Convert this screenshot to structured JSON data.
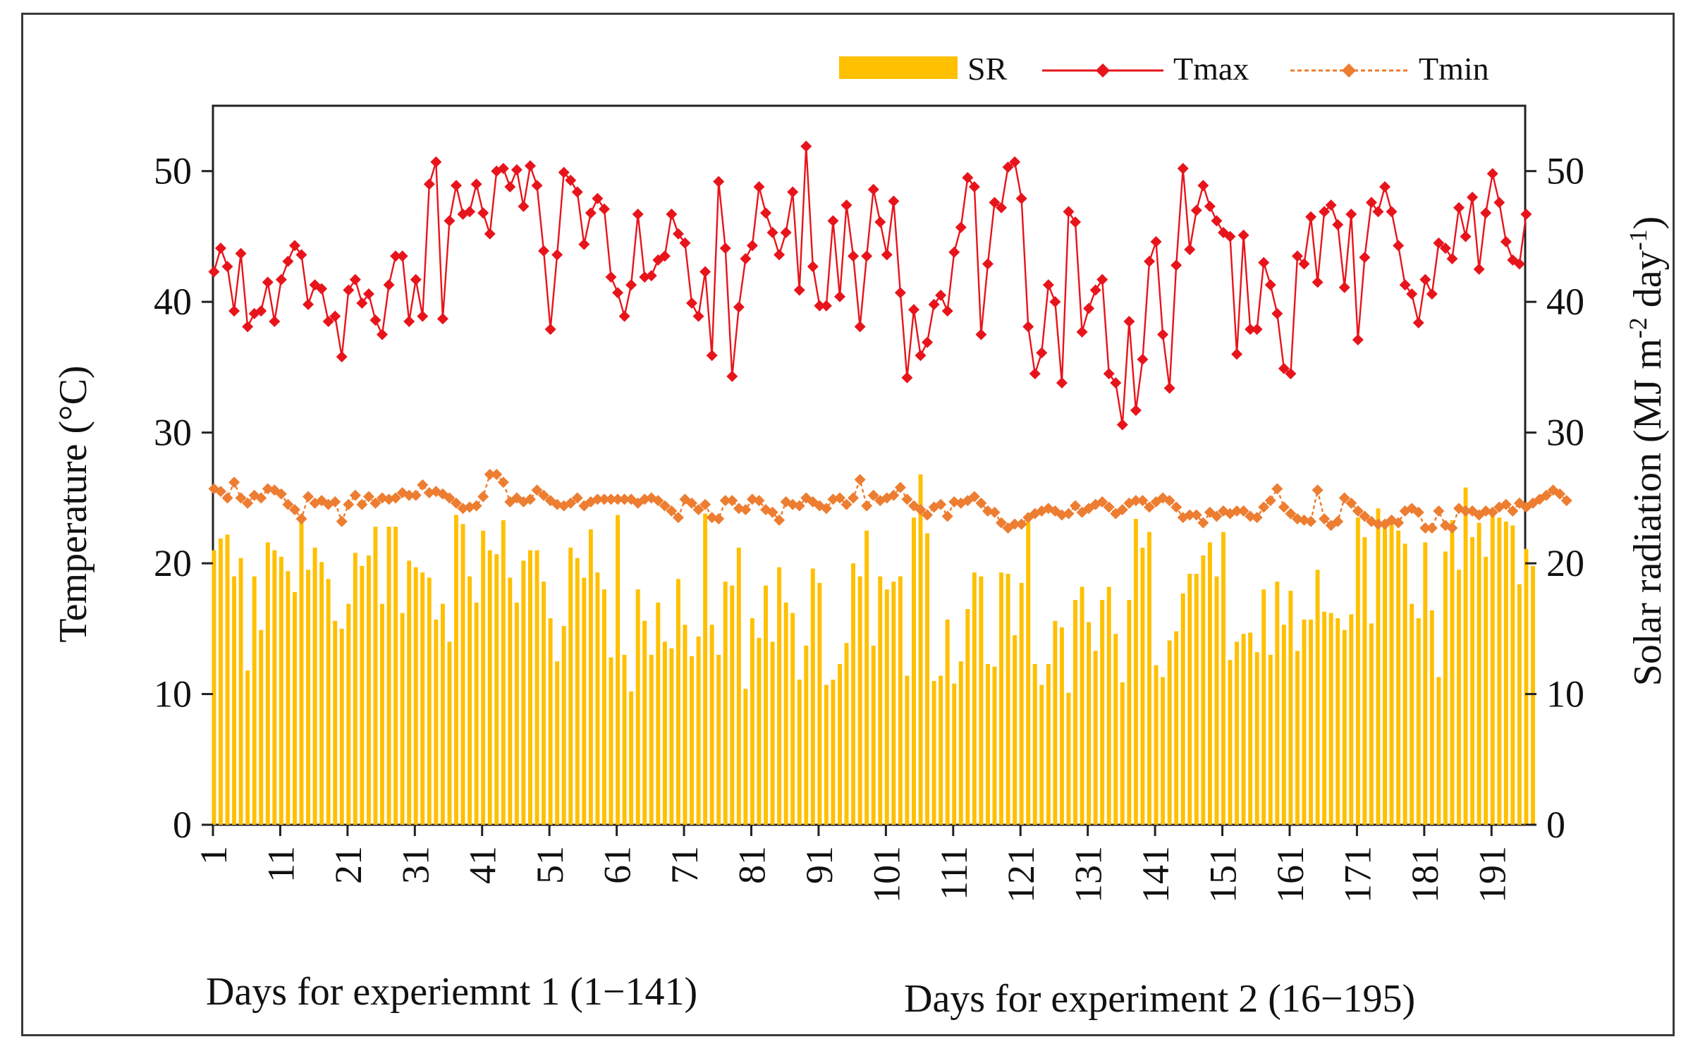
{
  "chart_data": {
    "type": "bar+line",
    "x_label": "",
    "y_left_label": "Temperature (°C)",
    "y_right_label_parts": [
      "Solar radiation (MJ m",
      "-2",
      " day",
      "-1",
      ")"
    ],
    "y_range": [
      0,
      55
    ],
    "y_ticks": [
      0,
      10,
      20,
      30,
      40,
      50
    ],
    "x_ticks": [
      1,
      11,
      21,
      31,
      41,
      51,
      61,
      71,
      81,
      91,
      101,
      111,
      121,
      131,
      141,
      151,
      161,
      171,
      181,
      191
    ],
    "grid": false,
    "legend_position": "top-right",
    "legend": [
      "SR",
      "Tmax",
      "Tmin"
    ],
    "annotations": [
      "Days for experiemnt 1 (1−141)",
      "Days for experiment 2 (16−195)"
    ],
    "colors": {
      "SR": "#ffc000",
      "Tmax": "#e8141b",
      "Tmin": "#ed7d31"
    },
    "days": [
      1,
      195
    ],
    "series": [
      {
        "name": "SR",
        "type": "bar",
        "values": [
          21.0,
          21.9,
          22.2,
          19.0,
          20.4,
          11.8,
          19.0,
          14.9,
          21.6,
          21.0,
          20.5,
          19.4,
          17.8,
          23.2,
          19.5,
          21.2,
          20.1,
          18.8,
          15.6,
          15.0,
          16.9,
          20.8,
          19.8,
          20.6,
          22.8,
          16.9,
          22.8,
          22.8,
          16.2,
          20.2,
          19.7,
          19.3,
          18.9,
          15.7,
          16.9,
          14.0,
          23.7,
          23.0,
          19.0,
          17.0,
          22.5,
          21.0,
          20.7,
          23.3,
          18.9,
          17.0,
          20.2,
          21.0,
          21.0,
          18.6,
          15.8,
          12.5,
          15.2,
          21.2,
          20.4,
          18.9,
          22.6,
          19.3,
          18.0,
          12.8,
          23.7,
          13.0,
          10.2,
          18.0,
          15.6,
          13.0,
          17.0,
          14.0,
          13.5,
          18.8,
          15.3,
          12.9,
          14.4,
          23.8,
          15.3,
          13.0,
          18.6,
          18.3,
          21.2,
          10.4,
          15.8,
          14.3,
          18.3,
          14.0,
          19.7,
          17.0,
          16.2,
          11.1,
          13.7,
          19.6,
          18.5,
          10.7,
          11.1,
          12.3,
          13.9,
          20.0,
          19.0,
          22.5,
          13.7,
          19.0,
          18.0,
          18.6,
          19.0,
          11.4,
          23.5,
          26.8,
          22.3,
          11.0,
          11.4,
          15.7,
          10.8,
          12.5,
          16.5,
          19.3,
          19.0,
          12.3,
          12.1,
          19.3,
          19.2,
          14.5,
          18.5,
          23.4,
          12.3,
          10.7,
          12.3,
          15.6,
          15.1,
          10.1,
          17.2,
          18.2,
          15.5,
          13.3,
          17.2,
          18.2,
          14.6,
          10.9,
          17.2,
          23.4,
          21.2,
          22.4,
          12.2,
          11.3,
          14.1,
          14.8,
          17.7,
          19.2,
          19.2,
          20.6,
          21.6,
          19.0,
          22.4,
          12.6,
          14.0,
          14.6,
          14.7,
          13.2,
          18.0,
          13.0,
          18.6,
          15.3,
          17.9,
          13.3,
          15.7,
          15.7,
          19.5,
          16.3,
          16.2,
          15.8,
          14.9,
          16.1,
          23.5,
          22.0,
          15.4,
          24.2,
          23.0,
          23.5,
          22.5,
          21.5,
          16.9,
          15.8,
          21.6,
          16.4,
          11.3,
          20.9,
          23.3,
          19.5,
          25.8,
          22.0,
          23.1,
          20.5,
          24.2,
          23.5,
          23.2,
          22.9,
          18.4,
          21.1,
          19.8
        ]
      },
      {
        "name": "Tmax",
        "type": "line",
        "values": [
          42.3,
          44.1,
          42.7,
          39.3,
          43.7,
          38.1,
          39.1,
          39.3,
          41.5,
          38.5,
          41.7,
          43.1,
          44.3,
          43.6,
          39.8,
          41.3,
          41.0,
          38.5,
          38.9,
          35.8,
          40.9,
          41.7,
          39.9,
          40.6,
          38.6,
          37.5,
          41.3,
          43.5,
          43.5,
          38.5,
          41.7,
          38.9,
          49.0,
          50.7,
          38.7,
          46.2,
          48.9,
          46.7,
          46.9,
          49.0,
          46.8,
          45.2,
          50.0,
          50.2,
          48.8,
          50.1,
          47.3,
          50.4,
          48.9,
          43.9,
          37.9,
          43.6,
          49.9,
          49.3,
          48.4,
          44.4,
          46.8,
          47.9,
          47.1,
          41.9,
          40.7,
          38.9,
          41.3,
          46.7,
          41.9,
          42.0,
          43.2,
          43.5,
          46.7,
          45.2,
          44.5,
          39.9,
          38.9,
          42.3,
          35.9,
          49.2,
          44.1,
          34.3,
          39.6,
          43.3,
          44.3,
          48.8,
          46.8,
          45.3,
          43.6,
          45.3,
          48.4,
          40.9,
          51.9,
          42.7,
          39.7,
          39.7,
          46.2,
          40.4,
          47.4,
          43.5,
          38.1,
          43.5,
          48.6,
          46.1,
          43.6,
          47.7,
          40.7,
          34.2,
          39.4,
          35.9,
          36.9,
          39.8,
          40.5,
          39.3,
          43.8,
          45.7,
          49.5,
          48.8,
          37.5,
          42.9,
          47.6,
          47.2,
          50.3,
          50.7,
          47.9,
          38.1,
          34.5,
          36.1,
          41.3,
          40.0,
          33.8,
          46.9,
          46.1,
          37.7,
          39.5,
          40.9,
          41.7,
          34.5,
          33.8,
          30.6,
          38.5,
          31.7,
          35.6,
          43.1,
          44.6,
          37.5,
          33.4,
          42.8,
          50.2,
          44.0,
          47.0,
          48.9,
          47.3,
          46.2,
          45.3,
          45.0,
          36.0,
          45.1,
          37.9,
          37.9,
          43.0,
          41.3,
          39.1,
          34.9,
          34.5,
          43.5,
          42.9,
          46.5,
          41.5,
          46.9,
          47.4,
          45.9,
          41.1,
          46.7,
          37.1,
          43.4,
          47.6,
          46.9,
          48.8,
          46.9,
          44.3,
          41.3,
          40.6,
          38.4,
          41.7,
          40.6,
          44.5,
          44.1,
          43.3,
          47.2,
          45.0,
          48.0,
          42.5,
          46.8,
          49.8,
          47.6,
          44.6,
          43.2,
          42.9,
          46.7
        ]
      },
      {
        "name": "Tmin",
        "type": "line",
        "values": [
          25.7,
          25.5,
          25.0,
          26.2,
          25.0,
          24.6,
          25.2,
          25.0,
          25.7,
          25.6,
          25.3,
          24.5,
          24.1,
          23.4,
          25.1,
          24.6,
          24.8,
          24.5,
          24.7,
          23.2,
          24.5,
          25.2,
          24.5,
          25.1,
          24.6,
          25.0,
          24.9,
          25.0,
          25.4,
          25.2,
          25.2,
          26.0,
          25.4,
          25.5,
          25.3,
          25.0,
          24.6,
          24.2,
          24.3,
          24.4,
          25.1,
          26.8,
          26.8,
          26.2,
          24.7,
          25.0,
          24.7,
          24.9,
          25.6,
          25.2,
          24.8,
          24.5,
          24.4,
          24.6,
          25.0,
          24.4,
          24.7,
          24.9,
          24.9,
          24.9,
          24.9,
          24.9,
          24.9,
          24.6,
          24.9,
          25.0,
          24.8,
          24.4,
          24.0,
          23.5,
          24.9,
          24.6,
          24.1,
          24.5,
          23.5,
          23.4,
          24.8,
          24.8,
          24.2,
          24.1,
          24.9,
          24.8,
          24.1,
          23.9,
          23.3,
          24.7,
          24.5,
          24.4,
          25.0,
          24.7,
          24.4,
          24.2,
          24.9,
          25.0,
          24.5,
          25.0,
          26.4,
          24.4,
          25.2,
          24.8,
          25.0,
          25.2,
          25.8,
          24.9,
          24.4,
          24.1,
          23.7,
          24.3,
          24.5,
          23.6,
          24.7,
          24.6,
          24.8,
          25.1,
          24.6,
          24.0,
          23.9,
          23.1,
          22.7,
          23.0,
          23.0,
          23.5,
          23.8,
          24.0,
          24.2,
          24.0,
          23.7,
          23.8,
          24.4,
          23.9,
          24.2,
          24.5,
          24.7,
          24.3,
          23.8,
          24.1,
          24.6,
          24.8,
          24.8,
          24.3,
          24.7,
          25.0,
          24.8,
          24.3,
          23.5,
          23.7,
          23.7,
          23.1,
          23.9,
          23.6,
          24.0,
          23.8,
          24.0,
          24.0,
          23.6,
          23.5,
          24.3,
          24.8,
          25.7,
          24.3,
          23.8,
          23.4,
          23.3,
          23.2,
          25.6,
          23.4,
          22.9,
          23.2,
          25.0,
          24.6,
          24.0,
          23.6,
          23.2,
          23.0,
          23.0,
          23.3,
          23.1,
          24.0,
          24.2,
          23.9,
          22.7,
          22.7,
          24.0,
          22.9,
          22.7,
          24.2,
          24.0,
          24.0,
          23.7,
          24.0,
          23.9,
          24.3,
          24.5,
          24.0,
          24.6,
          24.3,
          24.6,
          24.9,
          25.2,
          25.6,
          25.3,
          24.8
        ]
      }
    ]
  }
}
